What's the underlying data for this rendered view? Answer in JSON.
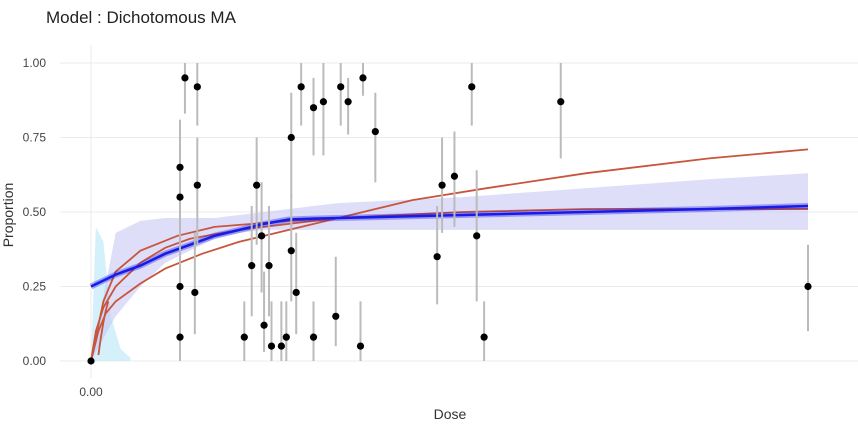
{
  "chart_data": {
    "type": "scatter",
    "title": "Model : Dichotomous MA",
    "xlabel": "Dose",
    "ylabel": "Proportion",
    "xlim": [
      -0.05,
      3.0
    ],
    "ylim": [
      -0.04,
      1.05
    ],
    "x_ticks": [
      {
        "value": 0,
        "label": "0.00"
      }
    ],
    "y_ticks": [
      {
        "value": 0,
        "label": "0.00"
      },
      {
        "value": 0.25,
        "label": "0.25"
      },
      {
        "value": 0.5,
        "label": "0.50"
      },
      {
        "value": 0.75,
        "label": "0.75"
      },
      {
        "value": 1.0,
        "label": "1.00"
      }
    ],
    "grid": true,
    "legend": "none",
    "colors": {
      "points": "#000000",
      "error_bars": "#bbbbbb",
      "ma_curve": "#1a1ae6",
      "ma_band": "#c8c8f5",
      "model_curves": "#c8553d",
      "light_band": "#c9ecfa",
      "grid": "#ebebeb"
    },
    "points": [
      {
        "x": 0.0,
        "y": 0.0,
        "lo": 0.0,
        "hi": 0.0
      },
      {
        "x": 0.36,
        "y": 0.65,
        "lo": 0.45,
        "hi": 0.81
      },
      {
        "x": 0.36,
        "y": 0.55,
        "lo": 0.35,
        "hi": 0.73
      },
      {
        "x": 0.36,
        "y": 0.25,
        "lo": 0.1,
        "hi": 0.45
      },
      {
        "x": 0.36,
        "y": 0.08,
        "lo": 0.0,
        "hi": 0.2
      },
      {
        "x": 0.38,
        "y": 0.95,
        "lo": 0.83,
        "hi": 1.0
      },
      {
        "x": 0.42,
        "y": 0.23,
        "lo": 0.09,
        "hi": 0.43
      },
      {
        "x": 0.43,
        "y": 0.92,
        "lo": 0.79,
        "hi": 1.0
      },
      {
        "x": 0.43,
        "y": 0.59,
        "lo": 0.39,
        "hi": 0.75
      },
      {
        "x": 0.62,
        "y": 0.08,
        "lo": 0.0,
        "hi": 0.2
      },
      {
        "x": 0.65,
        "y": 0.32,
        "lo": 0.15,
        "hi": 0.52
      },
      {
        "x": 0.67,
        "y": 0.59,
        "lo": 0.39,
        "hi": 0.75
      },
      {
        "x": 0.69,
        "y": 0.42,
        "lo": 0.23,
        "hi": 0.6
      },
      {
        "x": 0.7,
        "y": 0.12,
        "lo": 0.03,
        "hi": 0.3
      },
      {
        "x": 0.72,
        "y": 0.32,
        "lo": 0.15,
        "hi": 0.52
      },
      {
        "x": 0.73,
        "y": 0.05,
        "lo": 0.0,
        "hi": 0.2
      },
      {
        "x": 0.77,
        "y": 0.05,
        "lo": 0.0,
        "hi": 0.2
      },
      {
        "x": 0.79,
        "y": 0.08,
        "lo": 0.0,
        "hi": 0.2
      },
      {
        "x": 0.81,
        "y": 0.75,
        "lo": 0.55,
        "hi": 0.9
      },
      {
        "x": 0.81,
        "y": 0.37,
        "lo": 0.2,
        "hi": 0.56
      },
      {
        "x": 0.83,
        "y": 0.23,
        "lo": 0.09,
        "hi": 0.43
      },
      {
        "x": 0.85,
        "y": 0.92,
        "lo": 0.79,
        "hi": 1.0
      },
      {
        "x": 0.9,
        "y": 0.85,
        "lo": 0.69,
        "hi": 0.95
      },
      {
        "x": 0.9,
        "y": 0.08,
        "lo": 0.0,
        "hi": 0.2
      },
      {
        "x": 0.94,
        "y": 0.87,
        "lo": 0.69,
        "hi": 1.0
      },
      {
        "x": 0.99,
        "y": 0.15,
        "lo": 0.05,
        "hi": 0.35
      },
      {
        "x": 1.01,
        "y": 0.92,
        "lo": 0.79,
        "hi": 1.0
      },
      {
        "x": 1.04,
        "y": 0.87,
        "lo": 0.76,
        "hi": 0.95
      },
      {
        "x": 1.09,
        "y": 0.05,
        "lo": 0.0,
        "hi": 0.2
      },
      {
        "x": 1.1,
        "y": 0.95,
        "lo": 0.89,
        "hi": 1.0
      },
      {
        "x": 1.15,
        "y": 0.77,
        "lo": 0.6,
        "hi": 0.9
      },
      {
        "x": 1.4,
        "y": 0.35,
        "lo": 0.19,
        "hi": 0.52
      },
      {
        "x": 1.42,
        "y": 0.59,
        "lo": 0.43,
        "hi": 0.75
      },
      {
        "x": 1.47,
        "y": 0.62,
        "lo": 0.45,
        "hi": 0.77
      },
      {
        "x": 1.54,
        "y": 0.92,
        "lo": 0.79,
        "hi": 1.0
      },
      {
        "x": 1.56,
        "y": 0.42,
        "lo": 0.2,
        "hi": 0.64
      },
      {
        "x": 1.59,
        "y": 0.08,
        "lo": 0.0,
        "hi": 0.2
      },
      {
        "x": 1.9,
        "y": 0.87,
        "lo": 0.68,
        "hi": 1.0
      },
      {
        "x": 2.9,
        "y": 0.25,
        "lo": 0.1,
        "hi": 0.39
      }
    ],
    "series": [
      {
        "role": "ma_estimate",
        "x": [
          0,
          0.1,
          0.2,
          0.3,
          0.4,
          0.5,
          0.6,
          0.7,
          0.8,
          0.9,
          1.0,
          1.5,
          2.0,
          2.5,
          2.9
        ],
        "y": [
          0.25,
          0.29,
          0.32,
          0.36,
          0.39,
          0.42,
          0.44,
          0.46,
          0.475,
          0.478,
          0.48,
          0.49,
          0.5,
          0.51,
          0.52
        ],
        "lower": [
          0.0,
          0.15,
          0.25,
          0.33,
          0.37,
          0.41,
          0.43,
          0.44,
          0.44,
          0.44,
          0.44,
          0.44,
          0.44,
          0.44,
          0.44
        ],
        "upper": [
          0.0,
          0.43,
          0.47,
          0.48,
          0.48,
          0.48,
          0.49,
          0.5,
          0.51,
          0.52,
          0.53,
          0.55,
          0.58,
          0.61,
          0.63
        ]
      },
      {
        "role": "model_fit",
        "x": [
          0,
          0.02,
          0.05,
          0.1,
          0.2,
          0.3,
          0.4,
          0.6,
          0.8,
          1.0,
          1.5,
          2.0,
          2.5,
          2.9
        ],
        "y": [
          0,
          0.1,
          0.18,
          0.25,
          0.33,
          0.38,
          0.41,
          0.44,
          0.46,
          0.48,
          0.5,
          0.51,
          0.51,
          0.51
        ]
      },
      {
        "role": "model_fit",
        "x": [
          0,
          0.03,
          0.06,
          0.1,
          0.2,
          0.3,
          0.45,
          0.6,
          0.8,
          1.0,
          1.3,
          1.6,
          2.0,
          2.5,
          2.9
        ],
        "y": [
          0,
          0.1,
          0.16,
          0.2,
          0.26,
          0.31,
          0.36,
          0.4,
          0.44,
          0.48,
          0.54,
          0.58,
          0.63,
          0.68,
          0.71
        ]
      },
      {
        "role": "model_fit",
        "x": [
          0,
          0.02,
          0.05,
          0.1,
          0.2,
          0.35,
          0.5,
          0.8,
          1.0,
          1.5,
          2.0,
          2.5,
          2.9
        ],
        "y": [
          0,
          0.08,
          0.2,
          0.3,
          0.37,
          0.42,
          0.45,
          0.47,
          0.48,
          0.49,
          0.5,
          0.51,
          0.51
        ]
      },
      {
        "role": "model_fit",
        "x": [
          0.03,
          0.04,
          0.05,
          0.06,
          0.07
        ],
        "y": [
          0.02,
          0.08,
          0.13,
          0.17,
          0.2
        ]
      },
      {
        "role": "light_band",
        "x": [
          0.0,
          0.02,
          0.05,
          0.08,
          0.12,
          0.16
        ],
        "lower": [
          0.0,
          0.0,
          0.0,
          0.0,
          0.0,
          0.0
        ],
        "upper": [
          0.0,
          0.45,
          0.4,
          0.15,
          0.04,
          0.01
        ]
      }
    ]
  }
}
